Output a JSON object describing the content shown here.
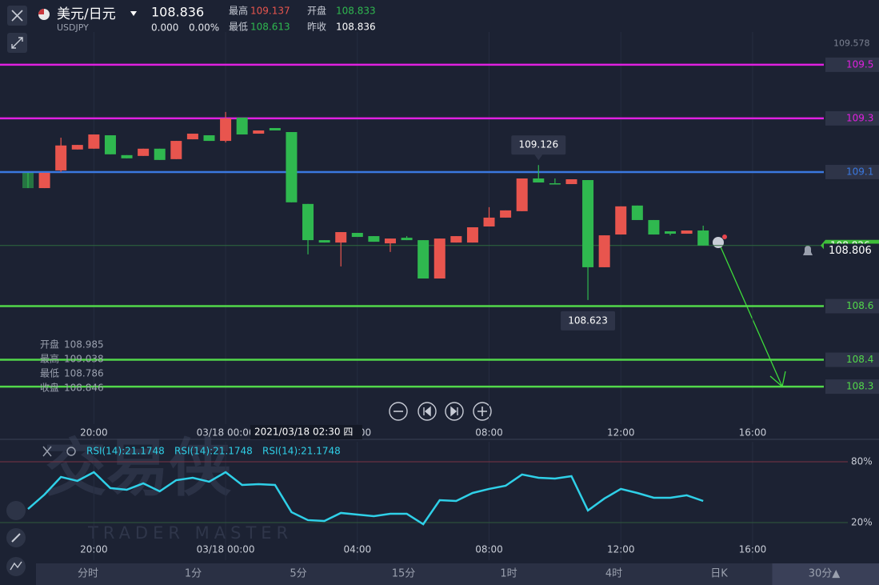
{
  "header": {
    "pair": "美元/日元",
    "symbol": "USDJPY",
    "price": "108.836",
    "change": "0.000",
    "change_pct": "0.00%",
    "stats": [
      {
        "label": "最高",
        "value": "109.137",
        "tone": "up"
      },
      {
        "label": "开盘",
        "value": "108.833",
        "tone": "down"
      },
      {
        "label": "最低",
        "value": "108.613",
        "tone": "down"
      },
      {
        "label": "昨收",
        "value": "108.836",
        "tone": "plain"
      }
    ]
  },
  "watermark": {
    "logo": "交易侠",
    "tagline": "TRADER MASTER"
  },
  "chart_data": {
    "type": "candlestick",
    "ylim": [
      108.16,
      109.622
    ],
    "axis_top_label": 109.578,
    "candles": [
      [
        109.097,
        109.097,
        109.04,
        109.04
      ],
      [
        109.04,
        109.097,
        109.04,
        109.097
      ],
      [
        109.106,
        109.228,
        109.1,
        109.199
      ],
      [
        109.184,
        109.201,
        109.184,
        109.201
      ],
      [
        109.187,
        109.24,
        109.187,
        109.24
      ],
      [
        109.237,
        109.237,
        109.166,
        109.166
      ],
      [
        109.163,
        109.163,
        109.151,
        109.151
      ],
      [
        109.16,
        109.187,
        109.16,
        109.187
      ],
      [
        109.187,
        109.187,
        109.145,
        109.145
      ],
      [
        109.148,
        109.216,
        109.148,
        109.216
      ],
      [
        109.222,
        109.243,
        109.222,
        109.243
      ],
      [
        109.237,
        109.237,
        109.216,
        109.216
      ],
      [
        109.216,
        109.324,
        109.21,
        109.3
      ],
      [
        109.303,
        109.303,
        109.24,
        109.24
      ],
      [
        109.243,
        109.255,
        109.243,
        109.255
      ],
      [
        109.264,
        109.264,
        109.255,
        109.255
      ],
      [
        109.249,
        109.249,
        108.987,
        108.987
      ],
      [
        108.981,
        108.981,
        108.793,
        108.846
      ],
      [
        108.846,
        108.846,
        108.837,
        108.837
      ],
      [
        108.837,
        108.876,
        108.748,
        108.876
      ],
      [
        108.873,
        108.873,
        108.858,
        108.858
      ],
      [
        108.861,
        108.861,
        108.84,
        108.84
      ],
      [
        108.834,
        108.852,
        108.802,
        108.852
      ],
      [
        108.855,
        108.861,
        108.846,
        108.846
      ],
      [
        108.846,
        108.846,
        108.703,
        108.703
      ],
      [
        108.703,
        108.852,
        108.703,
        108.852
      ],
      [
        108.837,
        108.861,
        108.837,
        108.861
      ],
      [
        108.837,
        108.894,
        108.837,
        108.894
      ],
      [
        108.897,
        108.969,
        108.897,
        108.93
      ],
      [
        108.93,
        108.957,
        108.93,
        108.957
      ],
      [
        108.954,
        109.076,
        108.954,
        109.076
      ],
      [
        109.076,
        109.126,
        109.061,
        109.061
      ],
      [
        109.058,
        109.076,
        109.055,
        109.055
      ],
      [
        109.055,
        109.073,
        109.055,
        109.073
      ],
      [
        109.07,
        109.07,
        108.623,
        108.745
      ],
      [
        108.745,
        108.864,
        108.745,
        108.864
      ],
      [
        108.867,
        108.972,
        108.867,
        108.972
      ],
      [
        108.975,
        108.975,
        108.921,
        108.921
      ],
      [
        108.921,
        108.921,
        108.867,
        108.867
      ],
      [
        108.879,
        108.879,
        108.864,
        108.87
      ],
      [
        108.87,
        108.882,
        108.87,
        108.882
      ],
      [
        108.882,
        108.9,
        108.826,
        108.826
      ]
    ],
    "up_color": "#e8554e",
    "down_color": "#2fb84f",
    "levels": [
      {
        "value": 109.5,
        "color": "#e020e0"
      },
      {
        "value": 109.3,
        "color": "#e020e0"
      },
      {
        "value": 109.1,
        "color": "#3a78e0"
      },
      {
        "value": 108.6,
        "color": "#52d84a"
      },
      {
        "value": 108.4,
        "color": "#52d84a"
      },
      {
        "value": 108.3,
        "color": "#52d84a"
      }
    ],
    "last_price": 108.826,
    "current_price": 108.806,
    "high_callout": 31,
    "low_callout": 34,
    "ohlc_legend": [
      {
        "label": "开盘",
        "value": 108.985
      },
      {
        "label": "最高",
        "value": 109.038
      },
      {
        "label": "最低",
        "value": 108.786
      },
      {
        "label": "收盘",
        "value": 108.846
      }
    ],
    "crosshair_time": "2021/03/18 02:30 四",
    "xticks": [
      {
        "value": 4,
        "label": "20:00"
      },
      {
        "value": 12,
        "label": "03/18 00:00"
      },
      {
        "value": 20,
        "label": "04:00"
      },
      {
        "value": 28,
        "label": "08:00"
      },
      {
        "value": 36,
        "label": "12:00"
      },
      {
        "value": 44,
        "label": "16:00"
      }
    ],
    "rsi": {
      "labels": [
        "RSI(14):21.1748",
        "RSI(14):21.1748",
        "RSI(14):21.1748"
      ],
      "color": "#2fd0e8",
      "ylim": [
        -17.1,
        99.7
      ],
      "yticks": [
        {
          "value": 80,
          "label": "80%"
        },
        {
          "value": 20,
          "label": "20%"
        }
      ],
      "values": [
        33.4,
        47.6,
        65.0,
        61.1,
        69.7,
        54.0,
        52.4,
        58.7,
        50.8,
        61.8,
        64.2,
        60.3,
        69.7,
        57.1,
        57.9,
        57.1,
        30.3,
        22.4,
        21.6,
        29.5,
        27.9,
        26.3,
        28.7,
        28.7,
        18.4,
        42.1,
        41.3,
        49.2,
        53.2,
        56.3,
        67.4,
        64.2,
        63.4,
        65.8,
        31.9,
        43.7,
        53.2,
        49.2,
        44.5,
        44.5,
        46.9,
        41.3
      ]
    }
  },
  "tabs": [
    "分时",
    "1分",
    "5分",
    "15分",
    "1时",
    "4时",
    "日K",
    "30分▲"
  ],
  "selected_tab": 7
}
